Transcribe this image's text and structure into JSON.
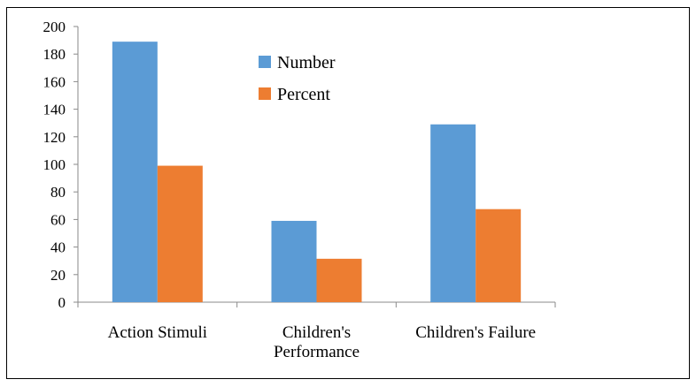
{
  "chart_data": {
    "type": "bar",
    "categories": [
      [
        "Action Stimuli"
      ],
      [
        "Children's",
        "Performance"
      ],
      [
        "Children's Failure"
      ]
    ],
    "series": [
      {
        "name": "Number",
        "values": [
          189,
          59,
          129
        ],
        "color": "#5B9BD5"
      },
      {
        "name": "Percent",
        "values": [
          99,
          31.5,
          67.5
        ],
        "color": "#ED7D31"
      }
    ],
    "ylim": [
      0,
      200
    ],
    "yticks": [
      0,
      20,
      40,
      60,
      80,
      100,
      120,
      140,
      160,
      180,
      200
    ],
    "grid": false,
    "legend_position": "top-center"
  }
}
